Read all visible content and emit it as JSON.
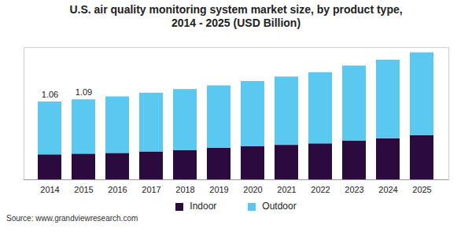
{
  "chart_data": {
    "type": "bar",
    "title": "U.S. air quality monitoring system market size, by product type,",
    "subtitle": "2014 - 2025 (USD Billion)",
    "source": "Source: www.grandviewresearch.com",
    "categories": [
      "2014",
      "2015",
      "2016",
      "2017",
      "2018",
      "2019",
      "2020",
      "2021",
      "2022",
      "2023",
      "2024",
      "2025"
    ],
    "series": [
      {
        "name": "Indoor",
        "color": "#2b0a3d",
        "values": [
          0.34,
          0.35,
          0.36,
          0.38,
          0.4,
          0.43,
          0.45,
          0.47,
          0.49,
          0.53,
          0.56,
          0.6
        ]
      },
      {
        "name": "Outdoor",
        "color": "#5bc8ef",
        "values": [
          0.72,
          0.74,
          0.77,
          0.8,
          0.83,
          0.85,
          0.89,
          0.93,
          0.97,
          1.02,
          1.07,
          1.13
        ]
      }
    ],
    "totals": [
      1.06,
      1.09,
      null,
      null,
      null,
      null,
      null,
      null,
      null,
      null,
      null,
      null
    ],
    "ylim": [
      0,
      1.8
    ],
    "stacked": true,
    "grid": false,
    "tick_labels": "x",
    "legend": "bottom"
  }
}
